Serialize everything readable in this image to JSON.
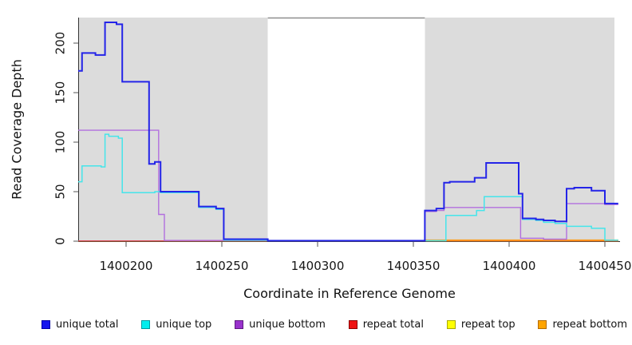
{
  "chart_data": {
    "type": "line",
    "subtype": "step-coverage-plot",
    "title": "",
    "xlabel": "Coordinate in Reference Genome",
    "ylabel": "Read Coverage Depth",
    "xlim": [
      1400175,
      1400457
    ],
    "ylim": [
      0,
      228
    ],
    "x_end": 1400457,
    "x_ticks": [
      1400200,
      1400250,
      1400300,
      1400350,
      1400400,
      1400450
    ],
    "x_tick_labels": [
      "1400200",
      "1400250",
      "1400300",
      "1400350",
      "1400400",
      "1400450"
    ],
    "y_ticks": [
      0,
      50,
      100,
      150,
      200
    ],
    "y_tick_labels": [
      "0",
      "50",
      "100",
      "150",
      "200"
    ],
    "grid": "off",
    "legend_position": "bottom",
    "background_shading": {
      "color": "#dcdcdc",
      "regions": [
        [
          1400175,
          1400274
        ],
        [
          1400356,
          1400455
        ]
      ],
      "gap": [
        1400274,
        1400356
      ]
    },
    "series": [
      {
        "name": "repeat_top",
        "legend_label": "repeat top",
        "color": "#f5f500",
        "line_width": 1.2,
        "steps": [
          [
            1400175,
            0.3
          ]
        ]
      },
      {
        "name": "repeat_total",
        "legend_label": "repeat total",
        "color": "#dd4455",
        "line_width": 1.2,
        "steps": [
          [
            1400175,
            0.3
          ]
        ]
      },
      {
        "name": "repeat_bottom",
        "legend_label": "repeat bottom",
        "color": "#ff9912",
        "line_width": 1.8,
        "steps": [
          [
            1400175,
            1
          ],
          [
            1400220,
            null
          ],
          [
            1400356,
            1
          ]
        ]
      },
      {
        "name": "unique_bottom",
        "legend_label": "unique bottom",
        "color": "#b26fde",
        "line_width": 1.4,
        "steps": [
          [
            1400175,
            112
          ],
          [
            1400217,
            27
          ],
          [
            1400220,
            0.7
          ],
          [
            1400274,
            0.5
          ],
          [
            1400356,
            30
          ],
          [
            1400362,
            31
          ],
          [
            1400366,
            34
          ],
          [
            1400406,
            3
          ],
          [
            1400418,
            2
          ],
          [
            1400430,
            38
          ],
          [
            1400450,
            37
          ]
        ]
      },
      {
        "name": "unique_top",
        "legend_label": "unique top",
        "color": "#45e5ea",
        "line_width": 1.5,
        "steps": [
          [
            1400175,
            60
          ],
          [
            1400177,
            76
          ],
          [
            1400187,
            75
          ],
          [
            1400189,
            108
          ],
          [
            1400191,
            106
          ],
          [
            1400196,
            104
          ],
          [
            1400198,
            49
          ],
          [
            1400215,
            50
          ],
          [
            1400218,
            49
          ],
          [
            1400238,
            34
          ],
          [
            1400247,
            32
          ],
          [
            1400251,
            1
          ],
          [
            1400274,
            0.5
          ],
          [
            1400367,
            26
          ],
          [
            1400383,
            31
          ],
          [
            1400387,
            45
          ],
          [
            1400407,
            22
          ],
          [
            1400414,
            21
          ],
          [
            1400418,
            19
          ],
          [
            1400424,
            18
          ],
          [
            1400430,
            15
          ],
          [
            1400443,
            13
          ],
          [
            1400450,
            1
          ]
        ]
      },
      {
        "name": "unique_total",
        "legend_label": "unique total",
        "color": "#2424e8",
        "line_width": 2,
        "steps": [
          [
            1400175,
            172
          ],
          [
            1400177,
            190
          ],
          [
            1400184,
            188
          ],
          [
            1400189,
            221
          ],
          [
            1400195,
            219
          ],
          [
            1400198,
            161
          ],
          [
            1400212,
            78
          ],
          [
            1400215,
            80
          ],
          [
            1400218,
            50
          ],
          [
            1400238,
            35
          ],
          [
            1400247,
            33
          ],
          [
            1400251,
            2
          ],
          [
            1400274,
            0.5
          ],
          [
            1400356,
            31
          ],
          [
            1400362,
            33
          ],
          [
            1400366,
            59
          ],
          [
            1400369,
            60
          ],
          [
            1400382,
            64
          ],
          [
            1400388,
            79
          ],
          [
            1400405,
            48
          ],
          [
            1400407,
            23
          ],
          [
            1400414,
            22
          ],
          [
            1400418,
            21
          ],
          [
            1400424,
            20
          ],
          [
            1400430,
            53
          ],
          [
            1400434,
            54
          ],
          [
            1400443,
            51
          ],
          [
            1400450,
            38
          ]
        ]
      }
    ]
  },
  "legend": {
    "items": [
      {
        "label": "unique total",
        "color": "#1414ee",
        "border": "#0000a8"
      },
      {
        "label": "unique top",
        "color": "#00eeee",
        "border": "#009aa0"
      },
      {
        "label": "unique bottom",
        "color": "#9932cc",
        "border": "#5e1b80"
      },
      {
        "label": "repeat total",
        "color": "#ee1111",
        "border": "#8b0000"
      },
      {
        "label": "repeat top",
        "color": "#ffff00",
        "border": "#a8a800"
      },
      {
        "label": "repeat bottom",
        "color": "#ffa500",
        "border": "#b36b00"
      }
    ]
  }
}
